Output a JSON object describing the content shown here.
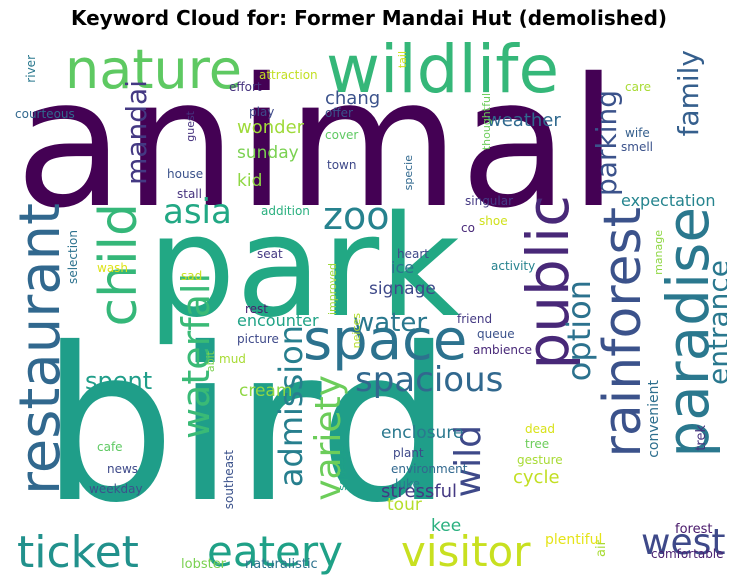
{
  "chart_data": {
    "type": "wordcloud",
    "title": "Keyword Cloud for: Former Mandai Hut (demolished)",
    "words": [
      {
        "text": "animal",
        "color": "#440154"
      },
      {
        "text": "park",
        "color": "#22a884"
      },
      {
        "text": "bird",
        "color": "#1f9e89"
      },
      {
        "text": "wildlife",
        "color": "#35b779"
      },
      {
        "text": "nature",
        "color": "#5ec962"
      },
      {
        "text": "restaurant",
        "color": "#31688e"
      },
      {
        "text": "paradise",
        "color": "#2a788e"
      },
      {
        "text": "rainforest",
        "color": "#3b528b"
      },
      {
        "text": "public",
        "color": "#482878"
      },
      {
        "text": "space",
        "color": "#2c728e"
      },
      {
        "text": "child",
        "color": "#35b779"
      },
      {
        "text": "zoo",
        "color": "#26828e"
      },
      {
        "text": "ticket",
        "color": "#21918c"
      },
      {
        "text": "visitor",
        "color": "#c8e020"
      },
      {
        "text": "eatery",
        "color": "#1fa187"
      },
      {
        "text": "waterfall",
        "color": "#3aba76"
      },
      {
        "text": "spacious",
        "color": "#31688e"
      },
      {
        "text": "variety",
        "color": "#6ccd5a"
      },
      {
        "text": "admission",
        "color": "#277f8e"
      },
      {
        "text": "wild",
        "color": "#3e4989"
      },
      {
        "text": "west",
        "color": "#3e4989"
      },
      {
        "text": "entrance",
        "color": "#2a788e"
      },
      {
        "text": "option",
        "color": "#2c728e"
      },
      {
        "text": "parking",
        "color": "#3b528b"
      },
      {
        "text": "family",
        "color": "#355f8d"
      },
      {
        "text": "asia",
        "color": "#22a884"
      },
      {
        "text": "mandai",
        "color": "#443983"
      },
      {
        "text": "water",
        "color": "#2a788e"
      },
      {
        "text": "spent",
        "color": "#1f9e89"
      },
      {
        "text": "chang",
        "color": "#3b528b"
      },
      {
        "text": "weather",
        "color": "#30698e"
      },
      {
        "text": "wonder",
        "color": "#9fda3a"
      },
      {
        "text": "sunday",
        "color": "#7ad151"
      },
      {
        "text": "kid",
        "color": "#8fd744"
      },
      {
        "text": "signage",
        "color": "#3e4989"
      },
      {
        "text": "encounter",
        "color": "#20a386"
      },
      {
        "text": "ice",
        "color": "#2c728e"
      },
      {
        "text": "cream",
        "color": "#8fd744"
      },
      {
        "text": "enclosure",
        "color": "#2a788e"
      },
      {
        "text": "stressful",
        "color": "#443983"
      },
      {
        "text": "cycle",
        "color": "#c2df23"
      },
      {
        "text": "tour",
        "color": "#b5de2b"
      },
      {
        "text": "kee",
        "color": "#2ab07f"
      },
      {
        "text": "expectation",
        "color": "#25848e"
      },
      {
        "text": "convenient",
        "color": "#2e6f8e"
      },
      {
        "text": "trek",
        "color": "#46327e"
      },
      {
        "text": "forest",
        "color": "#48186a"
      },
      {
        "text": "comfortable",
        "color": "#481f70"
      },
      {
        "text": "plentiful",
        "color": "#e5e419"
      },
      {
        "text": "air",
        "color": "#a8db34"
      },
      {
        "text": "lobster",
        "color": "#7ad151"
      },
      {
        "text": "naturalistic",
        "color": "#2c728e"
      },
      {
        "text": "southeast",
        "color": "#3b528b"
      },
      {
        "text": "squeeze",
        "color": "#1fa187"
      },
      {
        "text": "cafe",
        "color": "#5ec962"
      },
      {
        "text": "news",
        "color": "#3e4989"
      },
      {
        "text": "weekday",
        "color": "#3b528b"
      },
      {
        "text": "plant",
        "color": "#3e4989"
      },
      {
        "text": "environment",
        "color": "#31688e"
      },
      {
        "text": "luke",
        "color": "#2a788e"
      },
      {
        "text": "dead",
        "color": "#d8e219"
      },
      {
        "text": "tree",
        "color": "#6ccd5a"
      },
      {
        "text": "gesture",
        "color": "#a8db34"
      },
      {
        "text": "friend",
        "color": "#443983"
      },
      {
        "text": "queue",
        "color": "#3b528b"
      },
      {
        "text": "ambience",
        "color": "#482878"
      },
      {
        "text": "activity",
        "color": "#26828e"
      },
      {
        "text": "heart",
        "color": "#3e4989"
      },
      {
        "text": "co",
        "color": "#482878"
      },
      {
        "text": "shoe",
        "color": "#d0e11c"
      },
      {
        "text": "singular",
        "color": "#443983"
      },
      {
        "text": "manage",
        "color": "#8fd744"
      },
      {
        "text": "improved",
        "color": "#9fda3a"
      },
      {
        "text": "neices",
        "color": "#b5de2b"
      },
      {
        "text": "seat",
        "color": "#443983"
      },
      {
        "text": "sad",
        "color": "#c8e020"
      },
      {
        "text": "wash",
        "color": "#dde318"
      },
      {
        "text": "selection",
        "color": "#2c728e"
      },
      {
        "text": "rest",
        "color": "#481f70"
      },
      {
        "text": "picture",
        "color": "#3e4989"
      },
      {
        "text": "mud",
        "color": "#a8db34"
      },
      {
        "text": "abit",
        "color": "#7ad151"
      },
      {
        "text": "addition",
        "color": "#2ab07f"
      },
      {
        "text": "stall",
        "color": "#46327e"
      },
      {
        "text": "house",
        "color": "#3b528b"
      },
      {
        "text": "guest",
        "color": "#46327e"
      },
      {
        "text": "play",
        "color": "#3e4989"
      },
      {
        "text": "effort",
        "color": "#46327e"
      },
      {
        "text": "attraction",
        "color": "#c2df23"
      },
      {
        "text": "offer",
        "color": "#3b528b"
      },
      {
        "text": "cover",
        "color": "#5ec962"
      },
      {
        "text": "town",
        "color": "#3e4989"
      },
      {
        "text": "thoughtful",
        "color": "#6ccd5a"
      },
      {
        "text": "specie",
        "color": "#31688e"
      },
      {
        "text": "tail",
        "color": "#d0e11c"
      },
      {
        "text": "care",
        "color": "#a8db34"
      },
      {
        "text": "wife",
        "color": "#355f8d"
      },
      {
        "text": "smell",
        "color": "#3b528b"
      },
      {
        "text": "river",
        "color": "#2a788e"
      },
      {
        "text": "courteous",
        "color": "#31688e"
      }
    ]
  }
}
